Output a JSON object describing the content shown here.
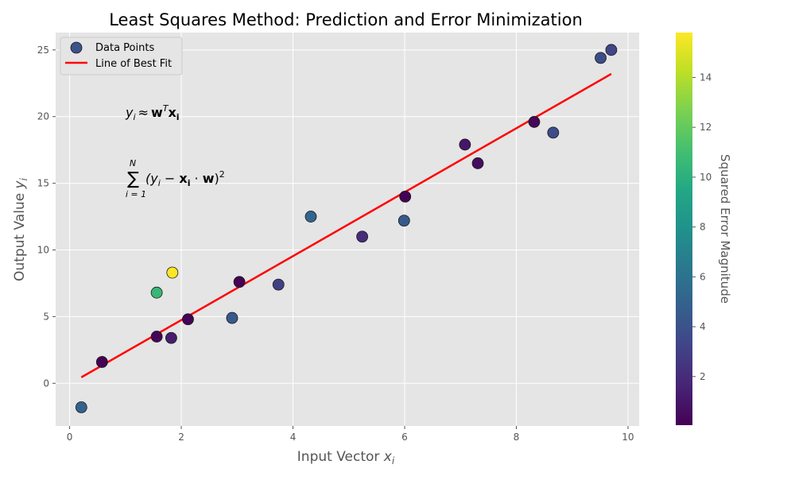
{
  "chart_data": {
    "type": "scatter",
    "title": "Least Squares Method: Prediction and Error Minimization",
    "xlabel": "Input Vector x_i",
    "ylabel": "Output Value y_i",
    "xlim": [
      -0.25,
      10.2
    ],
    "ylim": [
      -3.2,
      26.3
    ],
    "xticks": [
      "0",
      "2",
      "4",
      "6",
      "8",
      "10"
    ],
    "xtick_values": [
      0,
      2,
      4,
      6,
      8,
      10
    ],
    "yticks": [
      "0",
      "5",
      "10",
      "15",
      "20",
      "25"
    ],
    "ytick_values": [
      0,
      5,
      10,
      15,
      20,
      25
    ],
    "grid": true,
    "legend_position": "top-left",
    "series": [
      {
        "name": "Data Points",
        "kind": "scatter",
        "x": [
          0.21,
          0.58,
          1.56,
          1.56,
          1.82,
          1.84,
          2.12,
          2.91,
          3.04,
          3.74,
          4.32,
          5.24,
          5.99,
          6.01,
          7.08,
          7.31,
          8.32,
          8.66,
          9.51,
          9.7
        ],
        "y": [
          -1.8,
          1.6,
          3.5,
          6.8,
          3.4,
          8.3,
          4.8,
          4.9,
          7.6,
          7.4,
          12.5,
          11.0,
          12.2,
          14.0,
          17.9,
          16.5,
          19.6,
          18.8,
          24.4,
          25.0
        ],
        "squared_error": [
          5.0,
          0.1,
          0.3,
          10.5,
          1.3,
          15.8,
          0.2,
          4.4,
          0.1,
          3.0,
          5.2,
          2.0,
          4.5,
          0.1,
          1.0,
          0.6,
          0.3,
          3.6,
          3.8,
          3.3
        ]
      },
      {
        "name": "Line of Best Fit",
        "kind": "line",
        "color": "#ff0000",
        "x": [
          0.21,
          9.7
        ],
        "y": [
          0.45,
          23.2
        ]
      }
    ],
    "colorbar": {
      "label": "Squared Error Magnitude",
      "colormap": "viridis",
      "range": [
        0.05,
        15.8
      ],
      "ticks": [
        "2",
        "4",
        "6",
        "8",
        "10",
        "12",
        "14"
      ],
      "tick_values": [
        2,
        4,
        6,
        8,
        10,
        12,
        14
      ]
    },
    "annotations": [
      {
        "lhs_var": "y",
        "lhs_sub": "i",
        "relation": "≈",
        "w": "w",
        "t": "T",
        "x": "x",
        "x_sub": "i"
      },
      {
        "sigma": "∑",
        "upper": "N",
        "lower": "i = 1",
        "body_left": "(y",
        "body_i": "i",
        "body_mid": " − ",
        "body_x": "x",
        "body_xi": "i",
        "body_dot": " · ",
        "body_w": "w",
        "body_close": ")",
        "body_pow": "2"
      }
    ]
  },
  "colors": {
    "plot_background": "#e5e5e5",
    "grid": "#ffffff",
    "fit_line": "#ff0000",
    "marker_edge": "#1a1a1a"
  }
}
